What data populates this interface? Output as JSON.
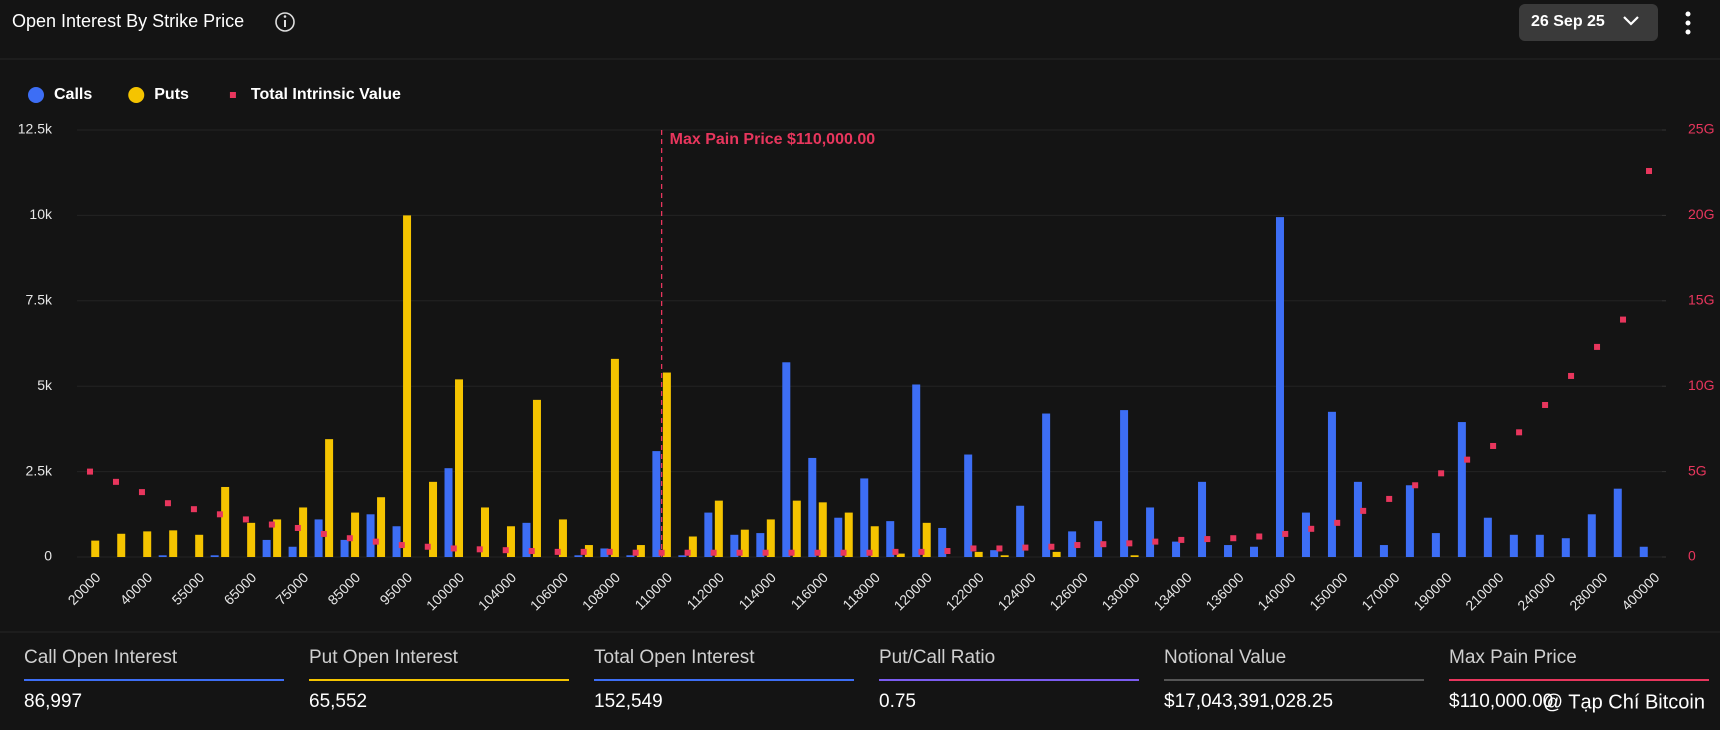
{
  "header": {
    "title": "Open Interest By Strike Price",
    "date": "26 Sep 25"
  },
  "chart_data": {
    "type": "bar",
    "categories": [
      "20000",
      null,
      "40000",
      null,
      "55000",
      null,
      "65000",
      null,
      "75000",
      null,
      "85000",
      null,
      "95000",
      null,
      "100000",
      null,
      "104000",
      null,
      "106000",
      null,
      "108000",
      null,
      "110000",
      null,
      "112000",
      null,
      "114000",
      null,
      "116000",
      null,
      "118000",
      null,
      "120000",
      null,
      "122000",
      null,
      "124000",
      null,
      "126000",
      null,
      "130000",
      null,
      "134000",
      null,
      "136000",
      null,
      "140000",
      null,
      "150000",
      null,
      "170000",
      null,
      "190000",
      null,
      "210000",
      null,
      "240000",
      null,
      "280000",
      null,
      "400000"
    ],
    "series": [
      {
        "name": "Calls",
        "color": "#3d6ef5",
        "values": [
          0,
          0,
          0,
          50,
          0,
          50,
          0,
          500,
          300,
          1100,
          500,
          1250,
          900,
          0,
          2600,
          0,
          0,
          1000,
          0,
          50,
          250,
          50,
          3100,
          50,
          1300,
          650,
          700,
          5700,
          2900,
          1150,
          2300,
          1050,
          5050,
          850,
          3000,
          200,
          1500,
          4200,
          750,
          1050,
          4300,
          1450,
          450,
          2200,
          350,
          300,
          9950,
          1300,
          4250,
          2200,
          350,
          2100,
          700,
          3950,
          1150,
          650,
          650,
          550,
          1250,
          2000,
          300
        ]
      },
      {
        "name": "Puts",
        "color": "#f5c400",
        "values": [
          480,
          680,
          750,
          780,
          650,
          2050,
          1000,
          1100,
          1450,
          3450,
          1300,
          1750,
          10000,
          2200,
          5200,
          1450,
          900,
          4600,
          1100,
          350,
          5800,
          350,
          5400,
          600,
          1650,
          800,
          1100,
          1650,
          1600,
          1300,
          900,
          100,
          1000,
          0,
          150,
          50,
          0,
          150,
          0,
          0,
          50,
          0,
          0,
          0,
          0,
          0,
          0,
          0,
          0,
          0,
          0,
          0,
          0,
          0,
          0,
          0,
          0,
          0,
          0,
          0,
          0
        ]
      },
      {
        "name": "Total Intrinsic Value",
        "color": "#e8365d",
        "type": "scatter",
        "axis": "y2",
        "values": [
          5000000000,
          4400000000,
          3800000000,
          3150000000,
          2800000000,
          2500000000,
          2200000000,
          1900000000,
          1700000000,
          1350000000,
          1100000000,
          900000000,
          700000000,
          600000000,
          500000000,
          450000000,
          400000000,
          350000000,
          300000000,
          300000000,
          300000000,
          250000000,
          250000000,
          250000000,
          250000000,
          250000000,
          250000000,
          250000000,
          250000000,
          250000000,
          250000000,
          300000000,
          300000000,
          350000000,
          500000000,
          500000000,
          550000000,
          600000000,
          700000000,
          750000000,
          800000000,
          900000000,
          1000000000,
          1050000000,
          1100000000,
          1200000000,
          1350000000,
          1650000000,
          2000000000,
          2700000000,
          3400000000,
          4200000000,
          4900000000,
          5700000000,
          6500000000,
          7300000000,
          8900000000,
          10600000000,
          12300000000,
          13900000000,
          22600000000
        ]
      }
    ],
    "ylim": [
      0,
      12500
    ],
    "yticks": [
      0,
      {
        "value": 2500,
        "label": "2.5k"
      },
      {
        "value": 5000,
        "label": "5k"
      },
      {
        "value": 7500,
        "label": "7.5k"
      },
      {
        "value": 10000,
        "label": "10k"
      },
      {
        "value": 12500,
        "label": "12.5k"
      }
    ],
    "y2lim": [
      0,
      25000000000
    ],
    "y2ticks": [
      0,
      {
        "value": 5000000000,
        "label": "5G"
      },
      {
        "value": 10000000000,
        "label": "10G"
      },
      {
        "value": 15000000000,
        "label": "15G"
      },
      {
        "value": 20000000000,
        "label": "20G"
      },
      {
        "value": 25000000000,
        "label": "25G"
      }
    ],
    "grid": true,
    "legend": "top-left",
    "annotations": [
      {
        "text": "Max Pain Price $110,000.00",
        "x": "110000",
        "color": "#e8365d"
      }
    ]
  },
  "stats": [
    {
      "label": "Call Open Interest",
      "value": "86,997",
      "color": "#3d6ef5"
    },
    {
      "label": "Put Open Interest",
      "value": "65,552",
      "color": "#f5c400"
    },
    {
      "label": "Total Open Interest",
      "value": "152,549",
      "color": "#3d6ef5"
    },
    {
      "label": "Put/Call Ratio",
      "value": "0.75",
      "color": "#7b5cf0"
    },
    {
      "label": "Notional Value",
      "value": "$17,043,391,028.25",
      "color": "#555555"
    },
    {
      "label": "Max Pain Price",
      "value": "$110,000.00",
      "color": "#e8365d"
    }
  ],
  "watermark": "@ Tạp Chí Bitcoin"
}
